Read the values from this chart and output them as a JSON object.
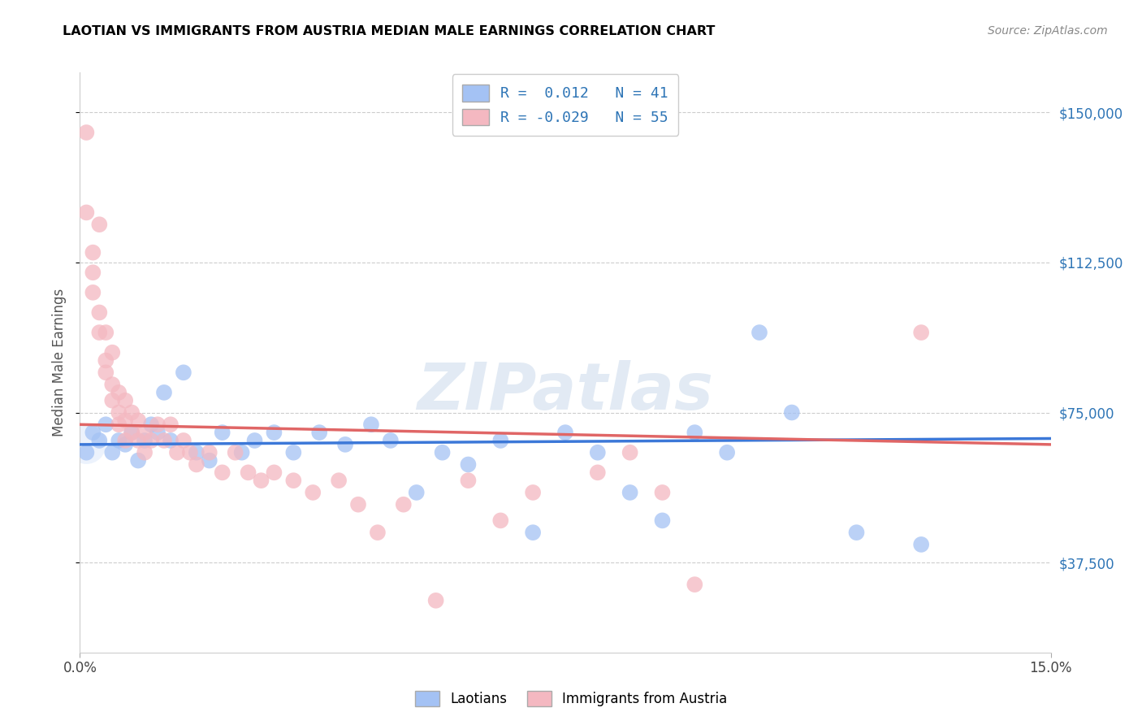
{
  "title": "LAOTIAN VS IMMIGRANTS FROM AUSTRIA MEDIAN MALE EARNINGS CORRELATION CHART",
  "source": "Source: ZipAtlas.com",
  "ylabel": "Median Male Earnings",
  "xmin": 0.0,
  "xmax": 0.15,
  "ymin": 15000,
  "ymax": 160000,
  "y_ticks": [
    37500,
    75000,
    112500,
    150000
  ],
  "y_tick_labels": [
    "$37,500",
    "$75,000",
    "$112,500",
    "$150,000"
  ],
  "watermark": "ZIPatlas",
  "color_blue": "#a4c2f4",
  "color_pink": "#f4b8c1",
  "color_blue_line": "#3c78d8",
  "color_pink_line": "#e06666",
  "scatter_blue_x": [
    0.001,
    0.002,
    0.003,
    0.004,
    0.005,
    0.006,
    0.007,
    0.008,
    0.009,
    0.01,
    0.011,
    0.012,
    0.013,
    0.014,
    0.016,
    0.018,
    0.02,
    0.022,
    0.025,
    0.027,
    0.03,
    0.033,
    0.037,
    0.041,
    0.045,
    0.048,
    0.052,
    0.056,
    0.06,
    0.065,
    0.07,
    0.075,
    0.08,
    0.085,
    0.09,
    0.095,
    0.1,
    0.105,
    0.11,
    0.12,
    0.13
  ],
  "scatter_blue_y": [
    65000,
    70000,
    68000,
    72000,
    65000,
    68000,
    67000,
    70000,
    63000,
    68000,
    72000,
    70000,
    80000,
    68000,
    85000,
    65000,
    63000,
    70000,
    65000,
    68000,
    70000,
    65000,
    70000,
    67000,
    72000,
    68000,
    55000,
    65000,
    62000,
    68000,
    45000,
    70000,
    65000,
    55000,
    48000,
    70000,
    65000,
    95000,
    75000,
    45000,
    42000
  ],
  "scatter_pink_x": [
    0.001,
    0.001,
    0.002,
    0.002,
    0.002,
    0.003,
    0.003,
    0.003,
    0.004,
    0.004,
    0.004,
    0.005,
    0.005,
    0.005,
    0.006,
    0.006,
    0.006,
    0.007,
    0.007,
    0.007,
    0.008,
    0.008,
    0.009,
    0.009,
    0.01,
    0.01,
    0.011,
    0.012,
    0.013,
    0.014,
    0.015,
    0.016,
    0.017,
    0.018,
    0.02,
    0.022,
    0.024,
    0.026,
    0.028,
    0.03,
    0.033,
    0.036,
    0.04,
    0.043,
    0.046,
    0.05,
    0.055,
    0.06,
    0.065,
    0.07,
    0.08,
    0.085,
    0.09,
    0.095,
    0.13
  ],
  "scatter_pink_y": [
    145000,
    125000,
    115000,
    110000,
    105000,
    122000,
    100000,
    95000,
    95000,
    88000,
    85000,
    90000,
    82000,
    78000,
    80000,
    75000,
    72000,
    78000,
    73000,
    68000,
    75000,
    70000,
    73000,
    68000,
    70000,
    65000,
    68000,
    72000,
    68000,
    72000,
    65000,
    68000,
    65000,
    62000,
    65000,
    60000,
    65000,
    60000,
    58000,
    60000,
    58000,
    55000,
    58000,
    52000,
    45000,
    52000,
    28000,
    58000,
    48000,
    55000,
    60000,
    65000,
    55000,
    32000,
    95000
  ],
  "blue_line_x": [
    0.0,
    0.15
  ],
  "blue_line_y": [
    67000,
    68500
  ],
  "pink_line_x": [
    0.0,
    0.15
  ],
  "pink_line_y": [
    72000,
    67000
  ]
}
